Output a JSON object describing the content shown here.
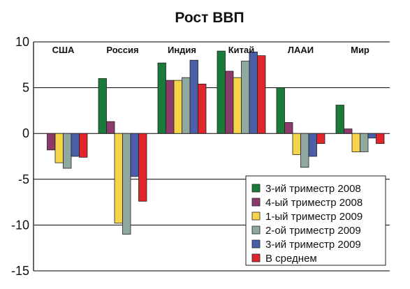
{
  "chart_data": {
    "type": "bar",
    "title": "Рост ВВП",
    "categories": [
      "США",
      "Россия",
      "Индия",
      "Китай",
      "ЛААИ",
      "Мир"
    ],
    "ylim": [
      -15,
      10
    ],
    "yticks": [
      10,
      5,
      0,
      -5,
      -10,
      -15
    ],
    "grid": "horizontal",
    "legend_position": "bottom-right",
    "series": [
      {
        "name": "3-ий триместр 2008",
        "color": "#1a7a3a",
        "values": [
          0,
          6.0,
          7.7,
          9.0,
          5.0,
          3.1
        ]
      },
      {
        "name": "4-ый триместр 2008",
        "color": "#8b3a6b",
        "values": [
          -1.8,
          1.3,
          5.8,
          6.8,
          1.2,
          0.5
        ]
      },
      {
        "name": "1-ый триместр 2009",
        "color": "#f5d44a",
        "values": [
          -3.2,
          -9.8,
          5.8,
          6.1,
          -2.3,
          -2.0
        ]
      },
      {
        "name": "2-ой триместр 2009",
        "color": "#8fa8a0",
        "values": [
          -3.8,
          -11.0,
          6.1,
          7.9,
          -3.7,
          -2.0
        ]
      },
      {
        "name": "3-ий триместр 2009",
        "color": "#4a5fa8",
        "values": [
          -2.5,
          -4.7,
          8.0,
          8.9,
          -2.5,
          -0.5
        ]
      },
      {
        "name": "В среднем",
        "color": "#e0262c",
        "values": [
          -2.6,
          -7.4,
          5.4,
          8.5,
          -1.1,
          -1.1
        ]
      }
    ]
  }
}
